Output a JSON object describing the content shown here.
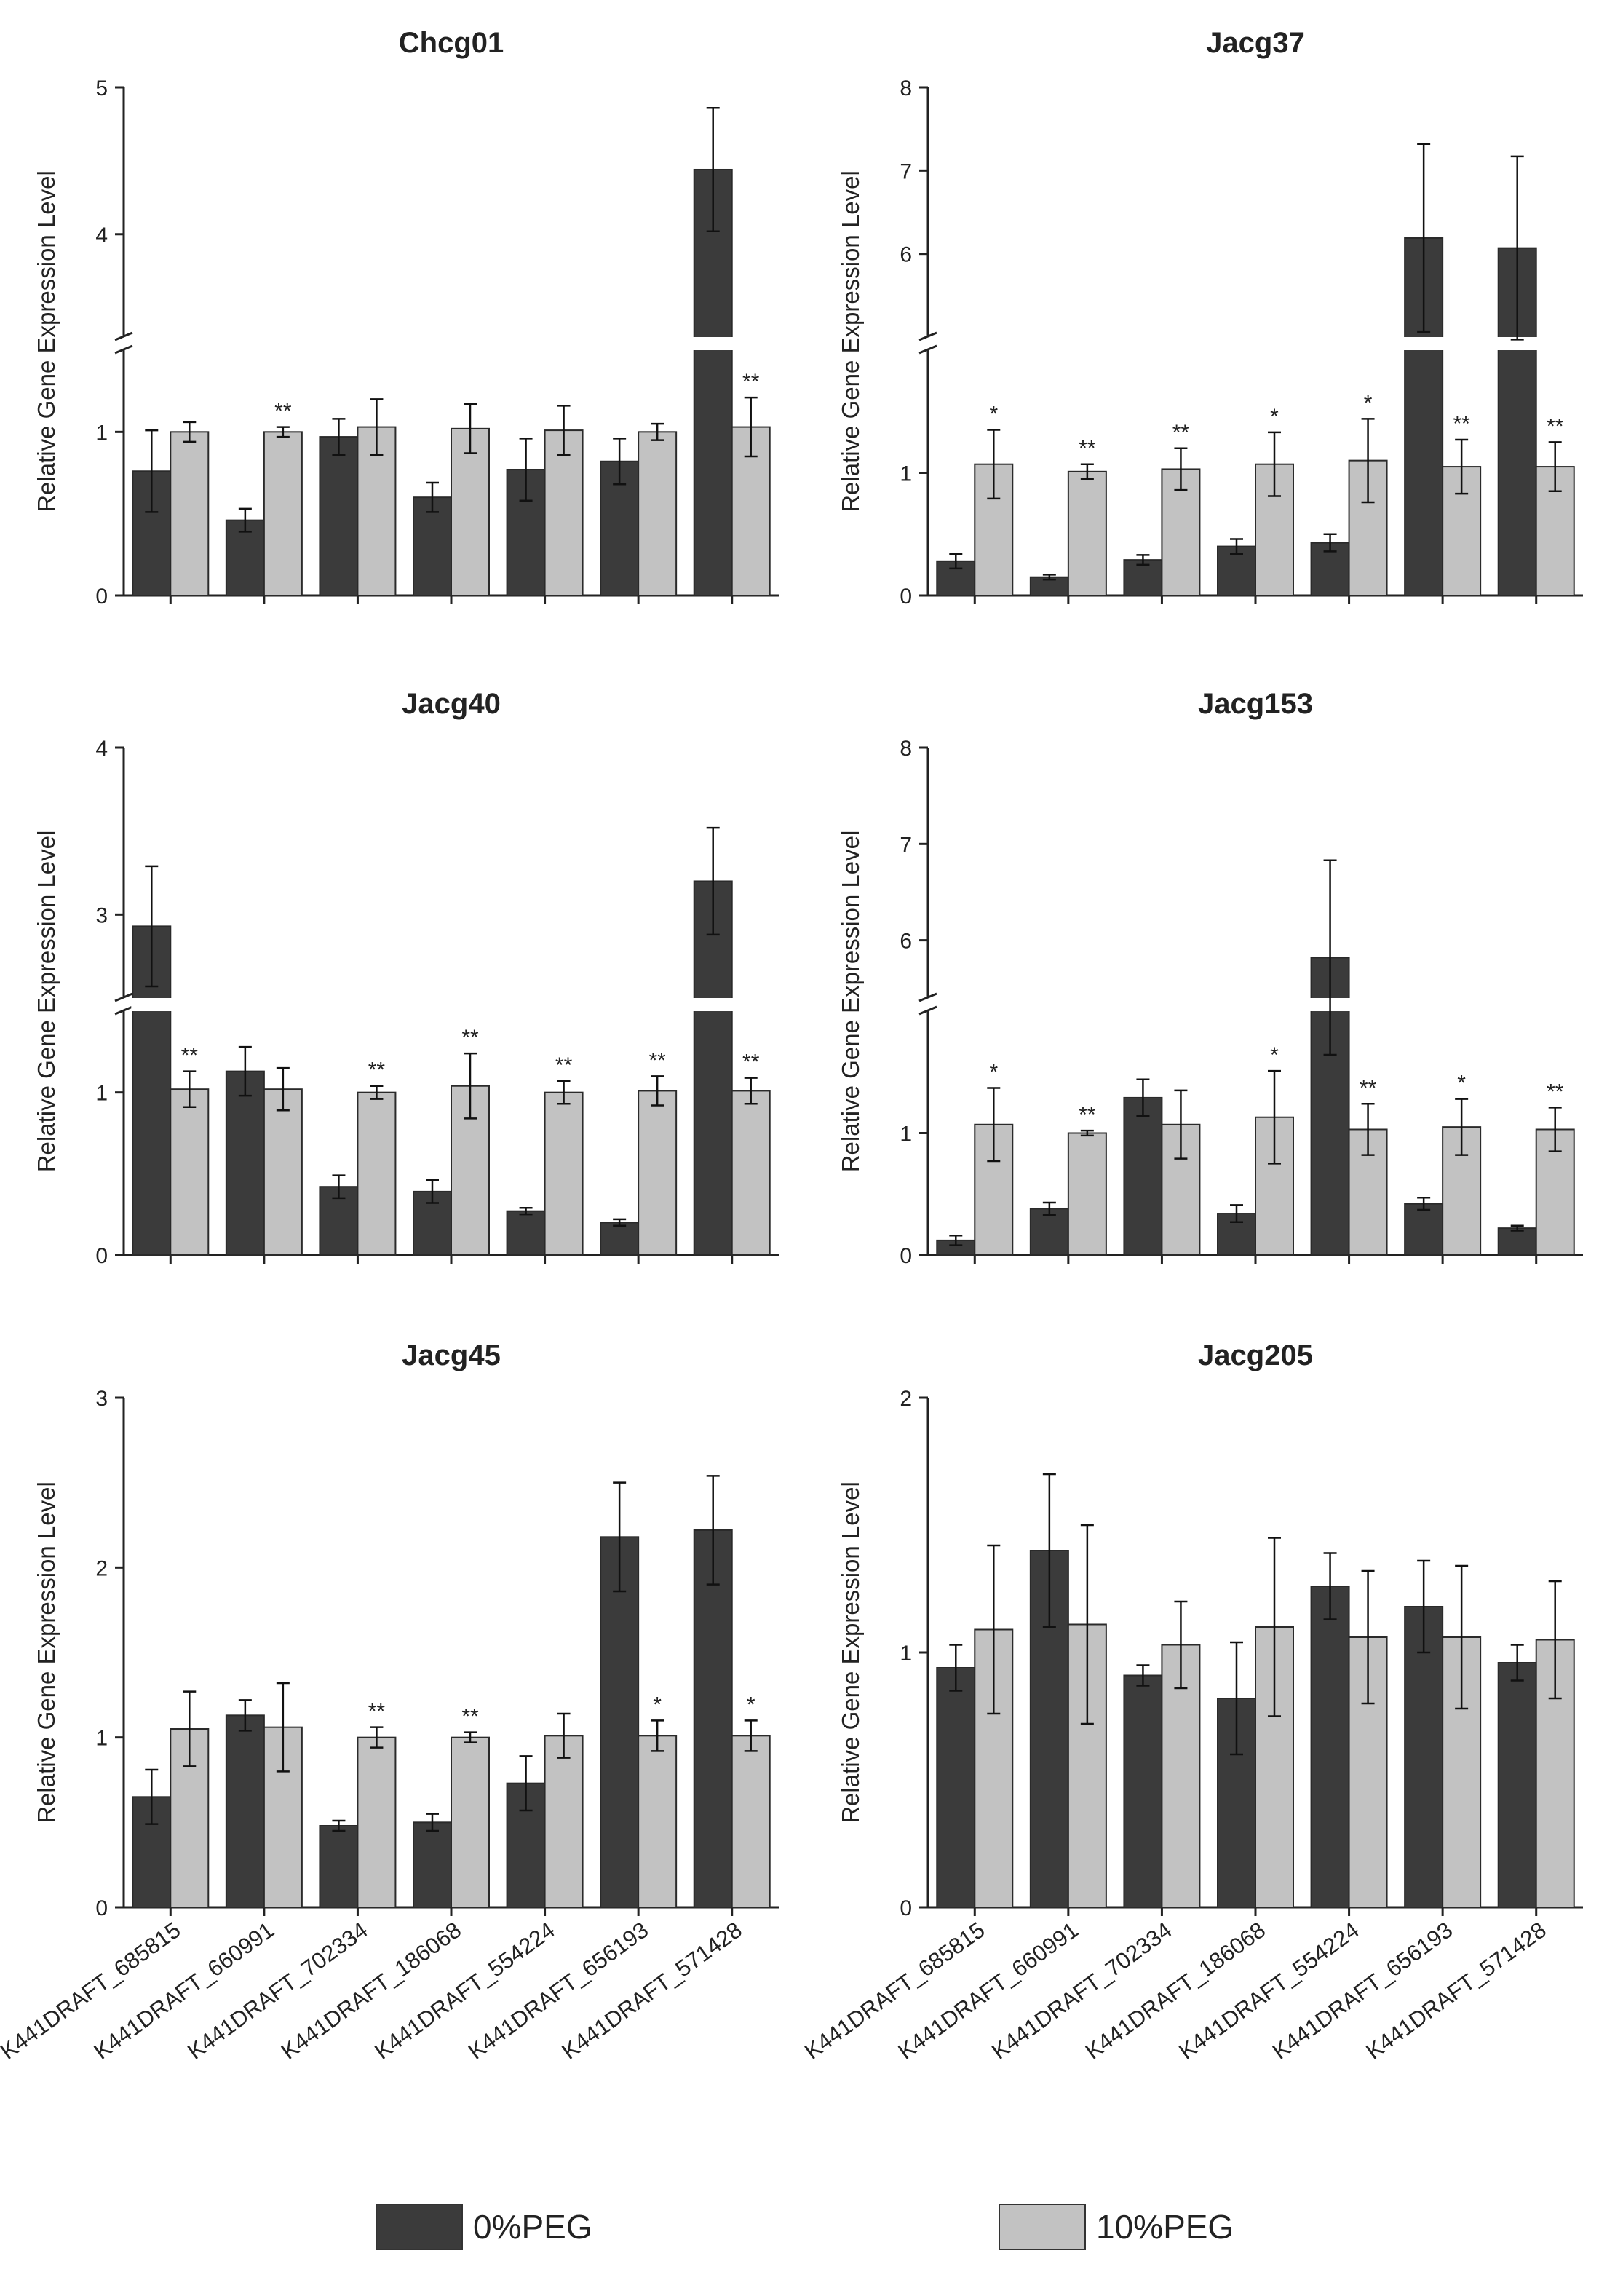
{
  "chart_data": {
    "type": "bar",
    "categories": [
      "K441DRAFT_685815",
      "K441DRAFT_660991",
      "K441DRAFT_702334",
      "K441DRAFT_186068",
      "K441DRAFT_554224",
      "K441DRAFT_656193",
      "K441DRAFT_571428"
    ],
    "ylabel": "Relative Gene Expression Level",
    "legend": [
      {
        "name": "0%PEG",
        "color": "#3b3b3b"
      },
      {
        "name": "10%PEG",
        "color": "#c2c2c2"
      }
    ],
    "panels": [
      {
        "title": "Chcg01",
        "broken_axis": true,
        "lower_range": [
          0,
          1.5
        ],
        "upper_range": [
          3.3,
          5
        ],
        "lower_ticks": [
          0,
          1
        ],
        "upper_ticks": [
          4,
          5
        ],
        "series": [
          {
            "name": "0%PEG",
            "values": [
              0.76,
              0.46,
              0.97,
              0.6,
              0.77,
              0.82,
              4.44
            ],
            "errors": [
              0.25,
              0.07,
              0.11,
              0.09,
              0.19,
              0.14,
              0.42
            ]
          },
          {
            "name": "10%PEG",
            "values": [
              1.0,
              1.0,
              1.03,
              1.02,
              1.01,
              1.0,
              1.03
            ],
            "errors": [
              0.06,
              0.03,
              0.17,
              0.15,
              0.15,
              0.05,
              0.18
            ]
          }
        ],
        "significance": [
          "",
          "**",
          "",
          "",
          "",
          "",
          "**"
        ]
      },
      {
        "title": "Jacg37",
        "broken_axis": true,
        "lower_range": [
          0,
          2
        ],
        "upper_range": [
          5.0,
          8
        ],
        "lower_ticks": [
          0,
          1
        ],
        "upper_ticks": [
          6,
          7,
          8
        ],
        "series": [
          {
            "name": "0%PEG",
            "values": [
              0.28,
              0.15,
              0.29,
              0.4,
              0.43,
              6.19,
              6.07
            ],
            "errors": [
              0.06,
              0.02,
              0.04,
              0.06,
              0.07,
              1.13,
              1.1
            ]
          },
          {
            "name": "10%PEG",
            "values": [
              1.07,
              1.01,
              1.03,
              1.07,
              1.1,
              1.05,
              1.05
            ],
            "errors": [
              0.28,
              0.06,
              0.17,
              0.26,
              0.34,
              0.22,
              0.2
            ]
          }
        ],
        "significance": [
          "*",
          "**",
          "**",
          "*",
          "*",
          "**",
          "**"
        ]
      },
      {
        "title": "Jacg40",
        "broken_axis": true,
        "lower_range": [
          0,
          1.5
        ],
        "upper_range": [
          2.5,
          4
        ],
        "lower_ticks": [
          0,
          1
        ],
        "upper_ticks": [
          3,
          4
        ],
        "series": [
          {
            "name": "0%PEG",
            "values": [
              2.93,
              1.13,
              0.42,
              0.39,
              0.27,
              0.2,
              3.2
            ],
            "errors": [
              0.36,
              0.15,
              0.07,
              0.07,
              0.02,
              0.02,
              0.32
            ]
          },
          {
            "name": "10%PEG",
            "values": [
              1.02,
              1.02,
              1.0,
              1.04,
              1.0,
              1.01,
              1.01
            ],
            "errors": [
              0.11,
              0.13,
              0.04,
              0.2,
              0.07,
              0.09,
              0.08
            ]
          }
        ],
        "significance": [
          "**",
          "",
          "**",
          "**",
          "**",
          "**",
          "**"
        ]
      },
      {
        "title": "Jacg153",
        "broken_axis": true,
        "lower_range": [
          0,
          2
        ],
        "upper_range": [
          5.4,
          8
        ],
        "lower_ticks": [
          0,
          1
        ],
        "upper_ticks": [
          6,
          7,
          8
        ],
        "series": [
          {
            "name": "0%PEG",
            "values": [
              0.12,
              0.38,
              1.29,
              0.34,
              5.82,
              0.42,
              0.22
            ],
            "errors": [
              0.04,
              0.05,
              0.15,
              0.07,
              1.01,
              0.05,
              0.02
            ]
          },
          {
            "name": "10%PEG",
            "values": [
              1.07,
              1.0,
              1.07,
              1.13,
              1.03,
              1.05,
              1.03
            ],
            "errors": [
              0.3,
              0.02,
              0.28,
              0.38,
              0.21,
              0.23,
              0.18
            ]
          }
        ],
        "significance": [
          "*",
          "**",
          "",
          "*",
          "**",
          "*",
          "**"
        ]
      },
      {
        "title": "Jacg45",
        "broken_axis": false,
        "range": [
          0,
          3
        ],
        "ticks": [
          0,
          1,
          2,
          3
        ],
        "series": [
          {
            "name": "0%PEG",
            "values": [
              0.65,
              1.13,
              0.48,
              0.5,
              0.73,
              2.18,
              2.22
            ],
            "errors": [
              0.16,
              0.09,
              0.03,
              0.05,
              0.16,
              0.32,
              0.32
            ]
          },
          {
            "name": "10%PEG",
            "values": [
              1.05,
              1.06,
              1.0,
              1.0,
              1.01,
              1.01,
              1.01
            ],
            "errors": [
              0.22,
              0.26,
              0.06,
              0.03,
              0.13,
              0.09,
              0.09
            ]
          }
        ],
        "significance": [
          "",
          "",
          "**",
          "**",
          "",
          "*",
          "*"
        ]
      },
      {
        "title": "Jacg205",
        "broken_axis": false,
        "range": [
          0,
          2
        ],
        "ticks": [
          0,
          1,
          2
        ],
        "series": [
          {
            "name": "0%PEG",
            "values": [
              0.94,
              1.4,
              0.91,
              0.82,
              1.26,
              1.18,
              0.96
            ],
            "errors": [
              0.09,
              0.3,
              0.04,
              0.22,
              0.13,
              0.18,
              0.07
            ]
          },
          {
            "name": "10%PEG",
            "values": [
              1.09,
              1.11,
              1.03,
              1.1,
              1.06,
              1.06,
              1.05
            ],
            "errors": [
              0.33,
              0.39,
              0.17,
              0.35,
              0.26,
              0.28,
              0.23
            ]
          }
        ],
        "significance": [
          "",
          "",
          "",
          "",
          "",
          "",
          ""
        ]
      }
    ]
  }
}
